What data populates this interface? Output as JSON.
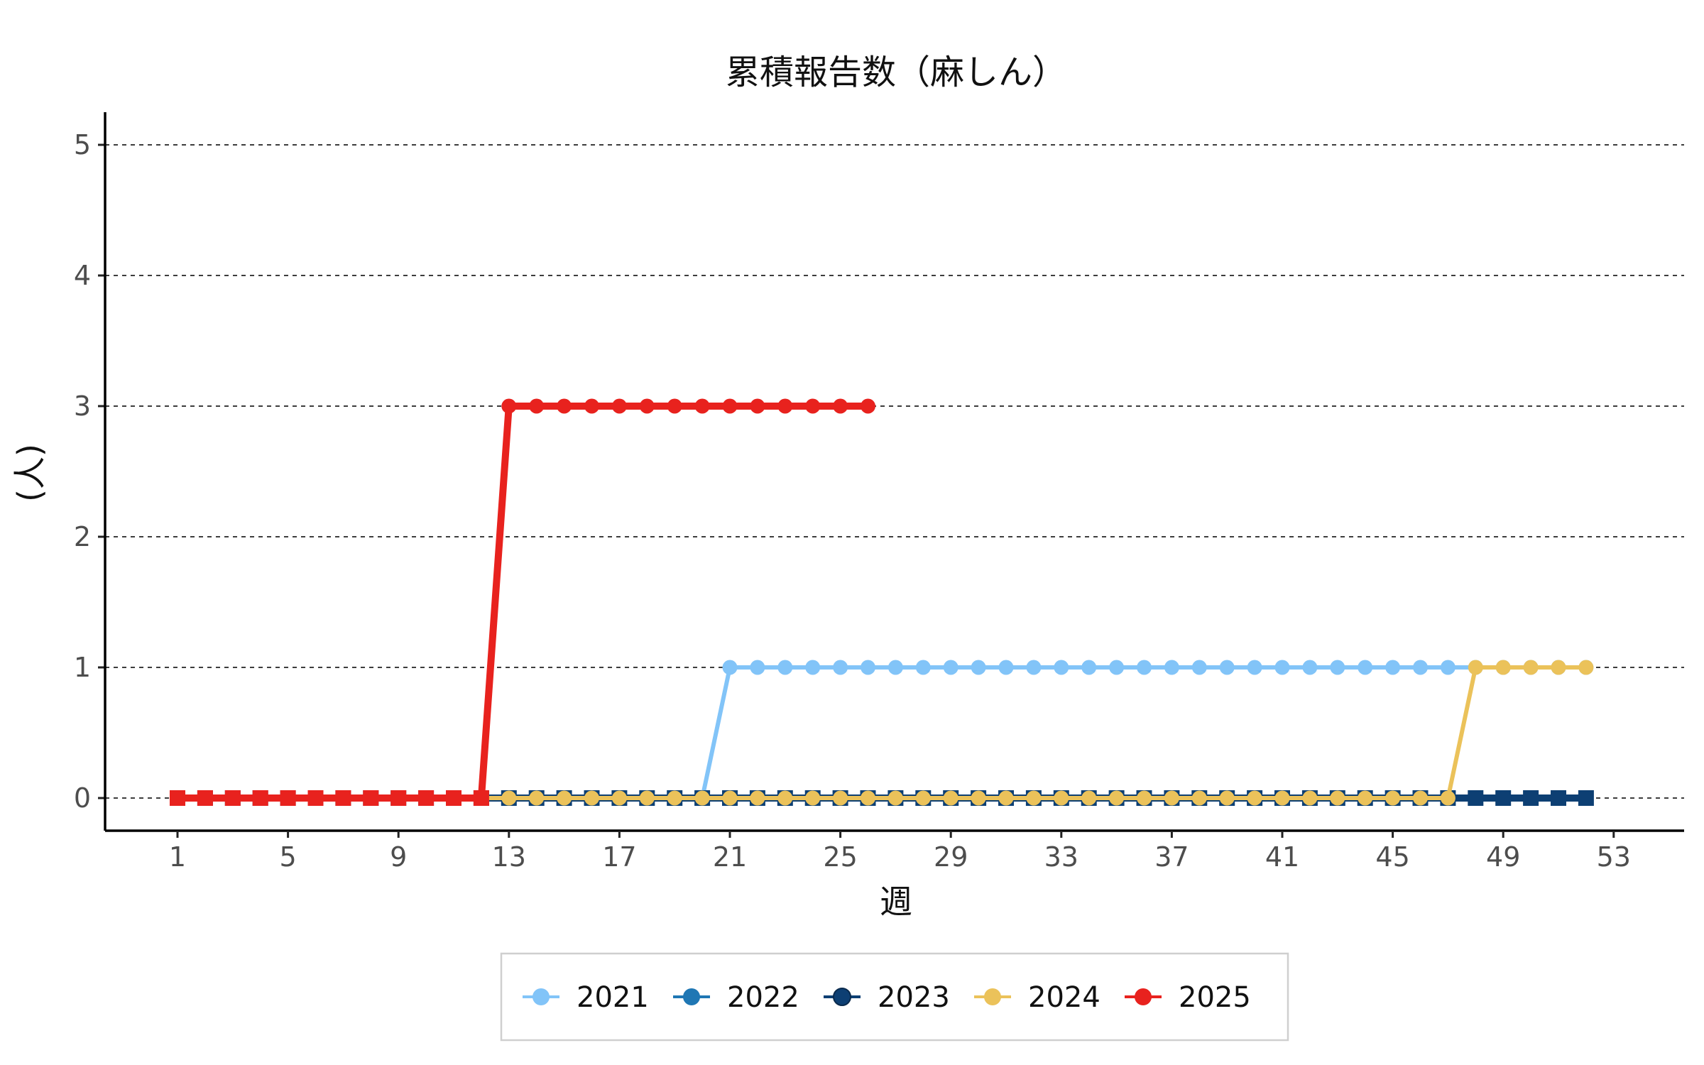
{
  "chart_data": {
    "type": "line",
    "title": "累積報告数（麻しん）",
    "xlabel": "週",
    "ylabel": "(人)",
    "x_range": [
      1,
      53
    ],
    "x_ticks": [
      1,
      5,
      9,
      13,
      17,
      21,
      25,
      29,
      33,
      37,
      41,
      45,
      49,
      53
    ],
    "ylim": [
      0,
      5
    ],
    "y_ticks": [
      0,
      1,
      2,
      3,
      4,
      5
    ],
    "grid": "horizontal dashed",
    "legend_position": "bottom",
    "series": [
      {
        "name": "2021",
        "color": "#82c4f8",
        "x": [
          1,
          2,
          3,
          4,
          5,
          6,
          7,
          8,
          9,
          10,
          11,
          12,
          13,
          14,
          15,
          16,
          17,
          18,
          19,
          20,
          21,
          22,
          23,
          24,
          25,
          26,
          27,
          28,
          29,
          30,
          31,
          32,
          33,
          34,
          35,
          36,
          37,
          38,
          39,
          40,
          41,
          42,
          43,
          44,
          45,
          46,
          47,
          48,
          49,
          50,
          51,
          52
        ],
        "values": [
          0,
          0,
          0,
          0,
          0,
          0,
          0,
          0,
          0,
          0,
          0,
          0,
          0,
          0,
          0,
          0,
          0,
          0,
          0,
          0,
          1,
          1,
          1,
          1,
          1,
          1,
          1,
          1,
          1,
          1,
          1,
          1,
          1,
          1,
          1,
          1,
          1,
          1,
          1,
          1,
          1,
          1,
          1,
          1,
          1,
          1,
          1,
          1,
          1,
          1,
          1,
          1
        ]
      },
      {
        "name": "2022",
        "color": "#1f77b4",
        "x": [
          1,
          2,
          3,
          4,
          5,
          6,
          7,
          8,
          9,
          10,
          11,
          12,
          13,
          14,
          15,
          16,
          17,
          18,
          19,
          20,
          21,
          22,
          23,
          24,
          25,
          26,
          27,
          28,
          29,
          30,
          31,
          32,
          33,
          34,
          35,
          36,
          37,
          38,
          39,
          40,
          41,
          42,
          43,
          44,
          45,
          46,
          47,
          48,
          49,
          50,
          51,
          52
        ],
        "values": [
          0,
          0,
          0,
          0,
          0,
          0,
          0,
          0,
          0,
          0,
          0,
          0,
          0,
          0,
          0,
          0,
          0,
          0,
          0,
          0,
          0,
          0,
          0,
          0,
          0,
          0,
          0,
          0,
          0,
          0,
          0,
          0,
          0,
          0,
          0,
          0,
          0,
          0,
          0,
          0,
          0,
          0,
          0,
          0,
          0,
          0,
          0,
          0,
          0,
          0,
          0,
          0
        ]
      },
      {
        "name": "2023",
        "color": "#0d3f73",
        "x": [
          1,
          2,
          3,
          4,
          5,
          6,
          7,
          8,
          9,
          10,
          11,
          12,
          13,
          14,
          15,
          16,
          17,
          18,
          19,
          20,
          21,
          22,
          23,
          24,
          25,
          26,
          27,
          28,
          29,
          30,
          31,
          32,
          33,
          34,
          35,
          36,
          37,
          38,
          39,
          40,
          41,
          42,
          43,
          44,
          45,
          46,
          47,
          48,
          49,
          50,
          51,
          52
        ],
        "values": [
          0,
          0,
          0,
          0,
          0,
          0,
          0,
          0,
          0,
          0,
          0,
          0,
          0,
          0,
          0,
          0,
          0,
          0,
          0,
          0,
          0,
          0,
          0,
          0,
          0,
          0,
          0,
          0,
          0,
          0,
          0,
          0,
          0,
          0,
          0,
          0,
          0,
          0,
          0,
          0,
          0,
          0,
          0,
          0,
          0,
          0,
          0,
          0,
          0,
          0,
          0,
          0
        ]
      },
      {
        "name": "2024",
        "color": "#ebc25a",
        "x": [
          1,
          2,
          3,
          4,
          5,
          6,
          7,
          8,
          9,
          10,
          11,
          12,
          13,
          14,
          15,
          16,
          17,
          18,
          19,
          20,
          21,
          22,
          23,
          24,
          25,
          26,
          27,
          28,
          29,
          30,
          31,
          32,
          33,
          34,
          35,
          36,
          37,
          38,
          39,
          40,
          41,
          42,
          43,
          44,
          45,
          46,
          47,
          48,
          49,
          50,
          51,
          52
        ],
        "values": [
          0,
          0,
          0,
          0,
          0,
          0,
          0,
          0,
          0,
          0,
          0,
          0,
          0,
          0,
          0,
          0,
          0,
          0,
          0,
          0,
          0,
          0,
          0,
          0,
          0,
          0,
          0,
          0,
          0,
          0,
          0,
          0,
          0,
          0,
          0,
          0,
          0,
          0,
          0,
          0,
          0,
          0,
          0,
          0,
          0,
          0,
          0,
          1,
          1,
          1,
          1,
          1
        ]
      },
      {
        "name": "2025",
        "color": "#e8221e",
        "x": [
          1,
          2,
          3,
          4,
          5,
          6,
          7,
          8,
          9,
          10,
          11,
          12,
          13,
          14,
          15,
          16,
          17,
          18,
          19,
          20,
          21,
          22,
          23,
          24,
          25,
          26
        ],
        "values": [
          0,
          0,
          0,
          0,
          0,
          0,
          0,
          0,
          0,
          0,
          0,
          0,
          3,
          3,
          3,
          3,
          3,
          3,
          3,
          3,
          3,
          3,
          3,
          3,
          3,
          3
        ]
      }
    ]
  }
}
